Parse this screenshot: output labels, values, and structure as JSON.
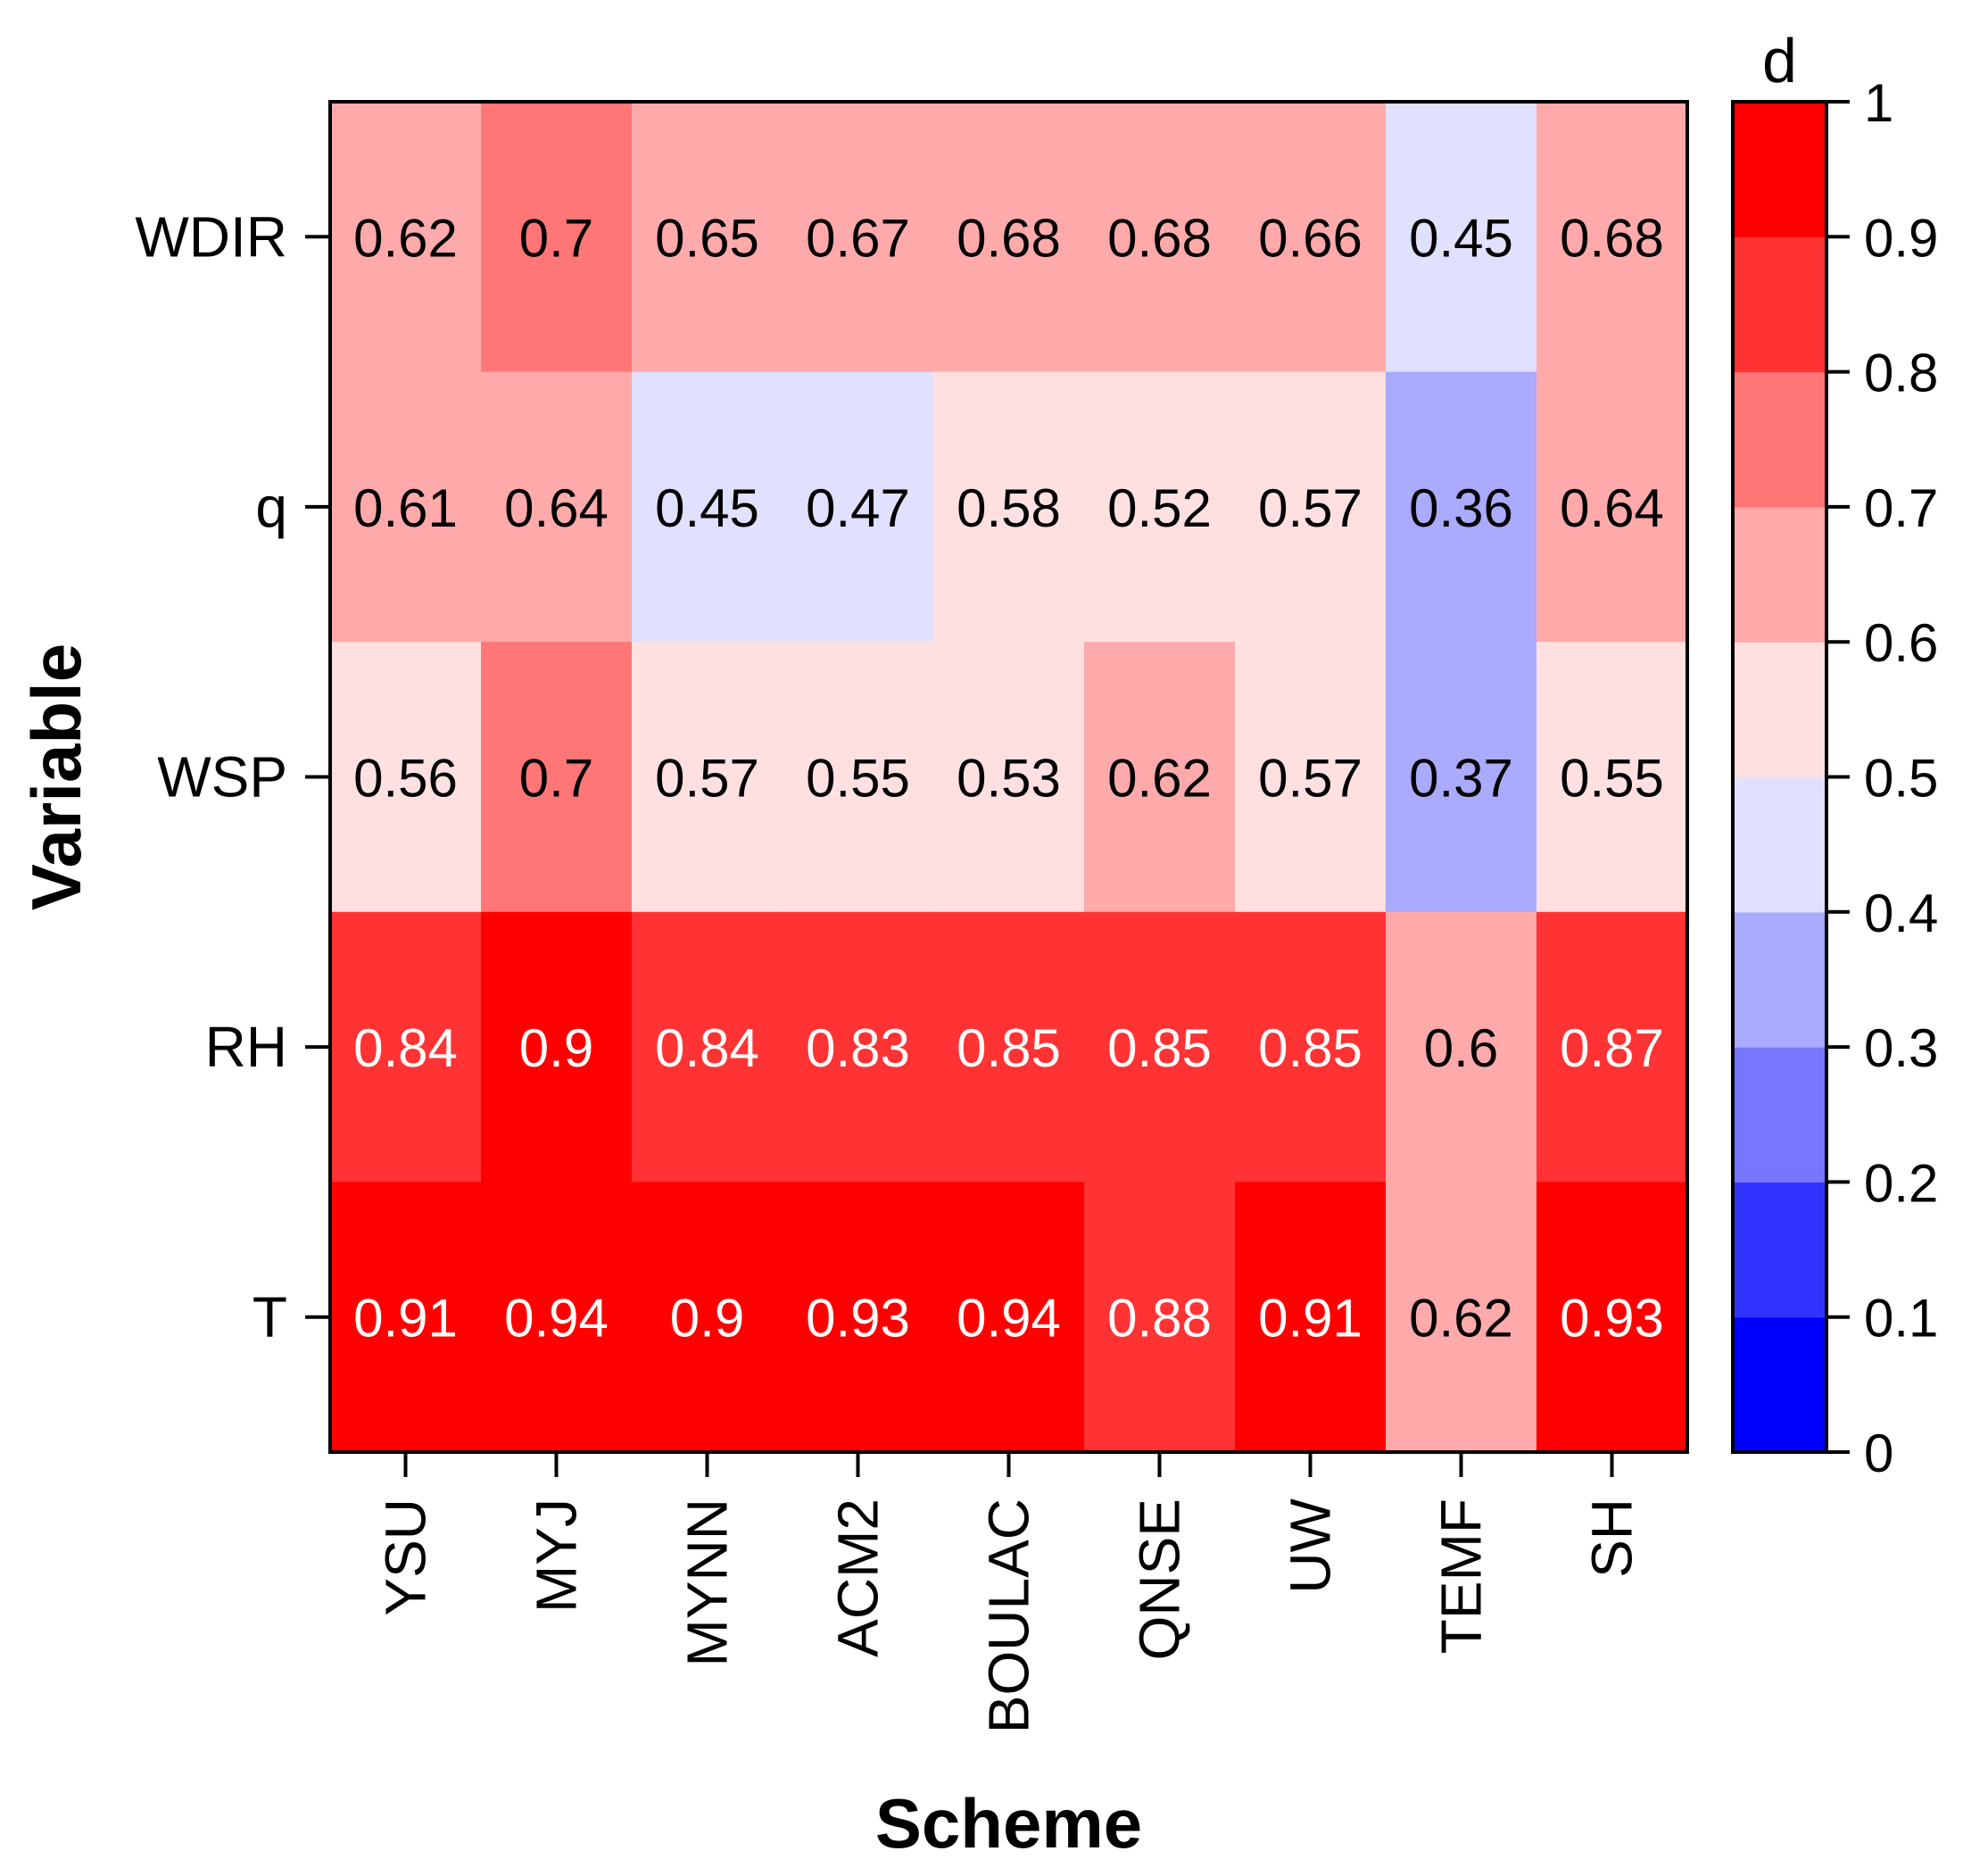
{
  "chart_data": {
    "type": "heatmap",
    "title": "",
    "xlabel": "Scheme",
    "ylabel": "Variable",
    "x_categories": [
      "YSU",
      "MYJ",
      "MYNN",
      "ACM2",
      "BOULAC",
      "QNSE",
      "UW",
      "TEMF",
      "SH"
    ],
    "y_categories": [
      "WDIR",
      "q",
      "WSP",
      "RH",
      "T"
    ],
    "values": [
      [
        0.62,
        0.7,
        0.65,
        0.67,
        0.68,
        0.68,
        0.66,
        0.45,
        0.68
      ],
      [
        0.61,
        0.64,
        0.45,
        0.47,
        0.58,
        0.52,
        0.57,
        0.36,
        0.64
      ],
      [
        0.56,
        0.7,
        0.57,
        0.55,
        0.53,
        0.62,
        0.57,
        0.37,
        0.55
      ],
      [
        0.84,
        0.9,
        0.84,
        0.83,
        0.85,
        0.85,
        0.85,
        0.6,
        0.87
      ],
      [
        0.91,
        0.94,
        0.9,
        0.93,
        0.94,
        0.88,
        0.91,
        0.62,
        0.93
      ]
    ],
    "value_labels": [
      [
        "0.62",
        "0.7",
        "0.65",
        "0.67",
        "0.68",
        "0.68",
        "0.66",
        "0.45",
        "0.68"
      ],
      [
        "0.61",
        "0.64",
        "0.45",
        "0.47",
        "0.58",
        "0.52",
        "0.57",
        "0.36",
        "0.64"
      ],
      [
        "0.56",
        "0.7",
        "0.57",
        "0.55",
        "0.53",
        "0.62",
        "0.57",
        "0.37",
        "0.55"
      ],
      [
        "0.84",
        "0.9",
        "0.84",
        "0.83",
        "0.85",
        "0.85",
        "0.85",
        "0.6",
        "0.87"
      ],
      [
        "0.91",
        "0.94",
        "0.9",
        "0.93",
        "0.94",
        "0.88",
        "0.91",
        "0.62",
        "0.93"
      ]
    ],
    "colorbar": {
      "title": "d",
      "range": [
        0,
        1
      ],
      "ticks": [
        "0",
        "0.1",
        "0.2",
        "0.3",
        "0.4",
        "0.5",
        "0.6",
        "0.7",
        "0.8",
        "0.9",
        "1"
      ],
      "bin_colors": [
        "#0000ff",
        "#3333ff",
        "#7676ff",
        "#aaaaff",
        "#e0e0ff",
        "#ffe0e0",
        "#ffaaaa",
        "#ff7676",
        "#ff3333",
        "#ff0000"
      ]
    },
    "text_colors": {
      "dark": "#000000",
      "light": "#ffffff"
    }
  }
}
